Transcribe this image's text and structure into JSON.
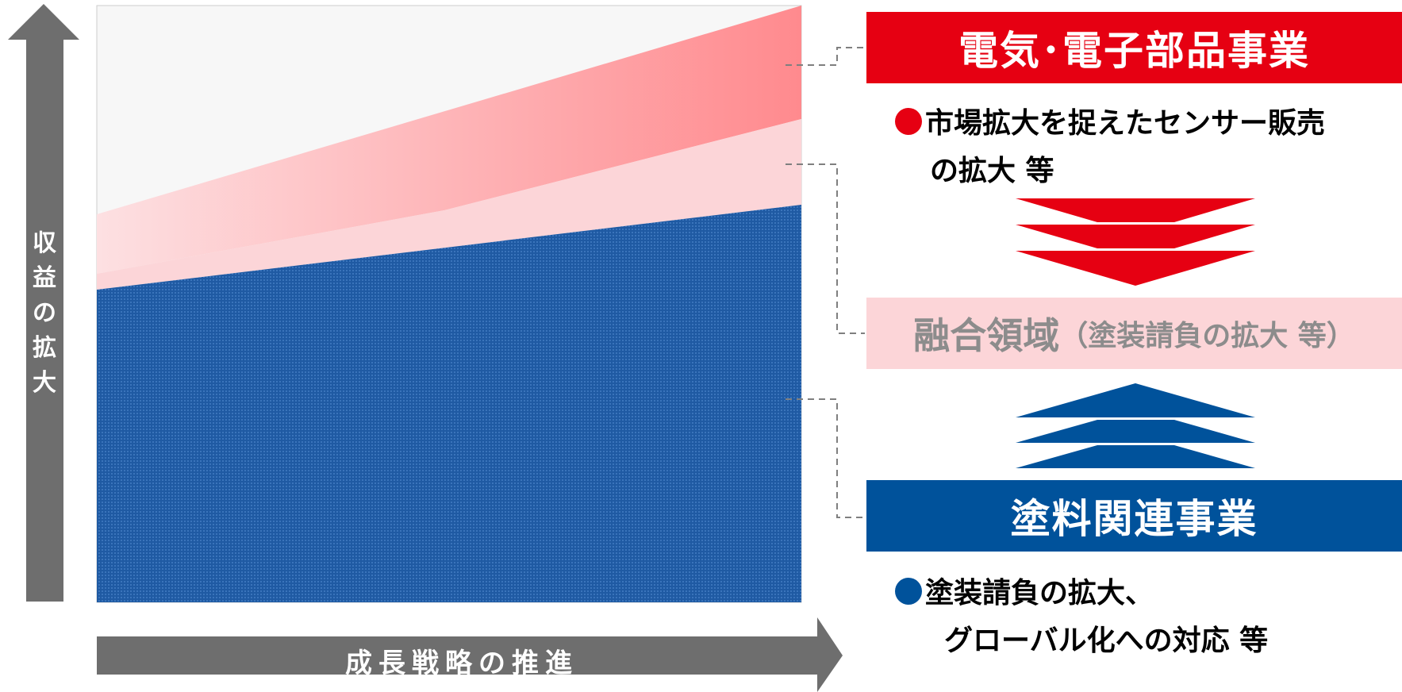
{
  "axes": {
    "y_label": "収益の拡大",
    "x_label": "成長戦略の推進"
  },
  "segments": {
    "electric": {
      "title": "電気･電子部品事業",
      "bullet": [
        "市場拡大を捉えたセンサー販売",
        "の拡大 等"
      ],
      "color": "#e60012"
    },
    "fusion": {
      "title": "融合領域",
      "subtitle": "（塗装請負の拡大 等）",
      "color": "#fcd5d8"
    },
    "paint": {
      "title": "塗料関連事業",
      "bullet": [
        "塗装請負の拡大、",
        "グローバル化への対応 等"
      ],
      "color": "#00529b"
    }
  }
}
